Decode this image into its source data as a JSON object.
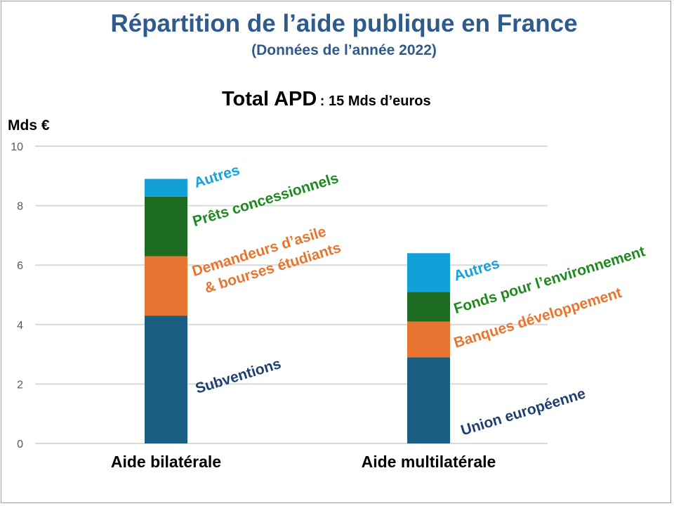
{
  "title": "Répartition de l’aide publique en France",
  "subtitle": "(Données de l’année 2022)",
  "total": {
    "label": "Total APD",
    "value": ": 15 Mds d’euros"
  },
  "chart_data": {
    "type": "bar",
    "stacked": true,
    "ylabel": "Mds €",
    "ylim": [
      0,
      10
    ],
    "yticks": [
      "0",
      "2",
      "4",
      "6",
      "8",
      "10"
    ],
    "grid": true,
    "categories": [
      "Aide bilatérale",
      "Aide multilatérale"
    ],
    "stacks": [
      {
        "category": "Aide bilatérale",
        "segments": [
          {
            "name": "Subventions",
            "value": 4.3,
            "color": "#1a5e82",
            "label_color": "#1f3f70"
          },
          {
            "name": "Demandeurs d’asile & bourses étudiants",
            "lines": [
              "Demandeurs d’asile",
              "& bourses étudiants"
            ],
            "value": 2.0,
            "color": "#e87532",
            "label_color": "#e8752e"
          },
          {
            "name": "Prêts concessionnels",
            "value": 2.0,
            "color": "#1e6b22",
            "label_color": "#1e8a1e"
          },
          {
            "name": "Autres",
            "value": 0.6,
            "color": "#12a0d8",
            "label_color": "#12a3dc"
          }
        ]
      },
      {
        "category": "Aide multilatérale",
        "segments": [
          {
            "name": "Union européenne",
            "value": 2.9,
            "color": "#1a5e82",
            "label_color": "#1f3f70"
          },
          {
            "name": "Banques développement",
            "value": 1.2,
            "color": "#e87532",
            "label_color": "#e8752e"
          },
          {
            "name": "Fonds pour l’environnement",
            "value": 1.0,
            "color": "#1e6b22",
            "label_color": "#1e8a1e"
          },
          {
            "name": "Autres",
            "value": 1.3,
            "color": "#12a0d8",
            "label_color": "#12a3dc"
          }
        ]
      }
    ]
  }
}
